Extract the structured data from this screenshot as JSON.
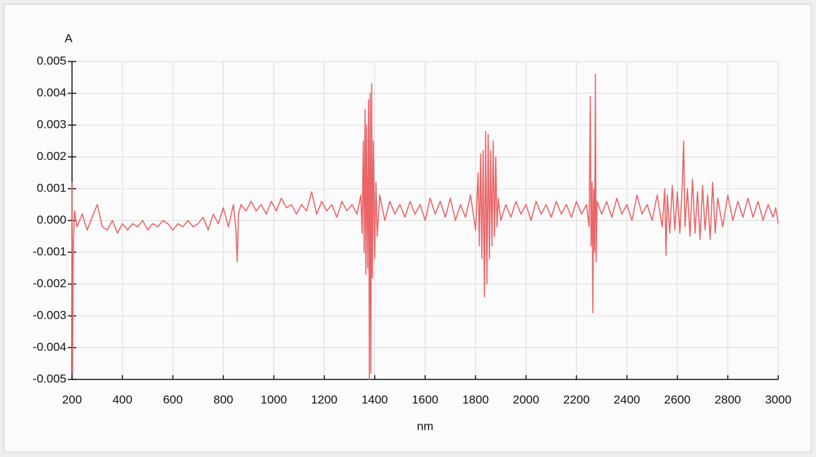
{
  "chart_data": {
    "type": "line",
    "x_label": "nm",
    "y_label": "A",
    "grid": true,
    "xlim": [
      200,
      3000
    ],
    "ylim": [
      -0.005,
      0.005
    ],
    "xticks": [
      200,
      400,
      600,
      800,
      1000,
      1200,
      1400,
      1600,
      1800,
      2000,
      2200,
      2400,
      2600,
      2800,
      3000
    ],
    "yticks": [
      -0.005,
      -0.004,
      -0.003,
      -0.002,
      -0.001,
      {
        "value": 0,
        "label": "0.000"
      },
      0.001,
      0.002,
      0.003,
      0.004,
      0.005
    ],
    "x": [
      200,
      202,
      205,
      210,
      220,
      240,
      260,
      280,
      300,
      320,
      340,
      360,
      380,
      400,
      420,
      440,
      460,
      480,
      500,
      520,
      540,
      560,
      580,
      600,
      620,
      640,
      660,
      680,
      700,
      720,
      740,
      760,
      780,
      800,
      820,
      840,
      850,
      855,
      860,
      870,
      890,
      910,
      930,
      950,
      970,
      990,
      1010,
      1030,
      1050,
      1070,
      1090,
      1110,
      1130,
      1150,
      1170,
      1190,
      1210,
      1230,
      1250,
      1270,
      1290,
      1310,
      1330,
      1345,
      1350,
      1355,
      1358,
      1362,
      1365,
      1368,
      1372,
      1376,
      1379,
      1382,
      1385,
      1388,
      1391,
      1395,
      1400,
      1405,
      1410,
      1420,
      1440,
      1460,
      1480,
      1500,
      1520,
      1540,
      1560,
      1580,
      1600,
      1620,
      1640,
      1660,
      1680,
      1700,
      1720,
      1740,
      1760,
      1780,
      1800,
      1810,
      1815,
      1820,
      1825,
      1830,
      1835,
      1840,
      1845,
      1850,
      1855,
      1860,
      1865,
      1870,
      1875,
      1880,
      1885,
      1890,
      1900,
      1920,
      1940,
      1960,
      1980,
      2000,
      2020,
      2040,
      2060,
      2080,
      2100,
      2120,
      2140,
      2160,
      2180,
      2200,
      2220,
      2240,
      2250,
      2255,
      2258,
      2262,
      2265,
      2268,
      2272,
      2275,
      2278,
      2282,
      2300,
      2320,
      2340,
      2360,
      2380,
      2400,
      2420,
      2440,
      2460,
      2480,
      2500,
      2520,
      2540,
      2550,
      2555,
      2560,
      2570,
      2580,
      2590,
      2600,
      2610,
      2620,
      2625,
      2630,
      2640,
      2650,
      2660,
      2670,
      2680,
      2690,
      2700,
      2710,
      2720,
      2730,
      2740,
      2750,
      2760,
      2780,
      2800,
      2820,
      2840,
      2860,
      2880,
      2900,
      2920,
      2940,
      2960,
      2980,
      2990,
      3000
    ],
    "series": [
      {
        "color": "#ea6468",
        "values": [
          0.0012,
          -0.0048,
          -0.0008,
          0.0003,
          -0.0002,
          0.0002,
          -0.0003,
          0.0001,
          0.0005,
          -0.0002,
          -0.0003,
          0.0,
          -0.0004,
          -0.0001,
          -0.0003,
          -0.0001,
          -0.0002,
          0.0,
          -0.0003,
          -0.0001,
          -0.0002,
          0.0,
          -0.0001,
          -0.0003,
          -0.0001,
          -0.0002,
          0.0,
          -0.0002,
          -0.0001,
          0.0001,
          -0.0003,
          0.0002,
          -0.0001,
          0.0004,
          -0.0002,
          0.0005,
          -0.0003,
          -0.0013,
          0.0002,
          0.0005,
          0.0003,
          0.0006,
          0.0003,
          0.0005,
          0.0002,
          0.0006,
          0.0003,
          0.0007,
          0.0004,
          0.0005,
          0.0002,
          0.0005,
          0.0003,
          0.0009,
          0.0002,
          0.0006,
          0.0003,
          0.0005,
          0.0001,
          0.0006,
          0.0003,
          0.0005,
          0.0002,
          0.0008,
          -0.0004,
          0.0025,
          -0.001,
          0.0035,
          -0.0017,
          0.003,
          -0.0015,
          0.0038,
          -0.005,
          0.004,
          -0.0048,
          0.0043,
          -0.0018,
          0.0025,
          -0.0012,
          0.0012,
          -0.0005,
          0.0008,
          0.0,
          0.0006,
          0.0002,
          0.0005,
          0.0001,
          0.0006,
          0.0002,
          0.0005,
          0.0,
          0.0007,
          0.0002,
          0.0006,
          0.0001,
          0.0007,
          0.0,
          0.0005,
          0.0001,
          0.0008,
          -0.0003,
          0.0015,
          -0.0008,
          0.0021,
          -0.0012,
          0.0022,
          -0.0024,
          0.0028,
          -0.002,
          0.0027,
          -0.0012,
          0.0022,
          -0.0008,
          0.0025,
          -0.0005,
          0.002,
          -0.0002,
          0.0007,
          0.0,
          0.0005,
          0.0001,
          0.0006,
          0.0002,
          0.0005,
          0.0,
          0.0006,
          0.0002,
          0.0005,
          0.0001,
          0.0006,
          0.0002,
          0.0005,
          0.0001,
          0.0006,
          0.0002,
          0.0005,
          -0.0002,
          0.0039,
          -0.0008,
          0.0012,
          -0.0029,
          0.001,
          -0.001,
          0.0046,
          -0.0013,
          0.0006,
          0.0002,
          0.0006,
          0.0001,
          0.0007,
          0.0002,
          0.0005,
          0.0,
          0.0008,
          0.0002,
          0.0005,
          0.0,
          0.0008,
          -0.0002,
          0.001,
          -0.0011,
          0.0008,
          -0.0004,
          0.0011,
          -0.0003,
          0.0009,
          -0.0004,
          0.0012,
          0.0025,
          -0.0002,
          0.001,
          -0.0005,
          0.0013,
          -0.0004,
          0.0009,
          -0.0006,
          0.0011,
          -0.0003,
          0.0008,
          -0.0006,
          0.0012,
          -0.0004,
          0.0007,
          -0.0002,
          0.0008,
          0.0,
          0.0006,
          0.0001,
          0.0007,
          0.0001,
          0.0006,
          0.0,
          0.0005,
          0.0001,
          0.0004,
          -0.0001
        ]
      }
    ]
  }
}
